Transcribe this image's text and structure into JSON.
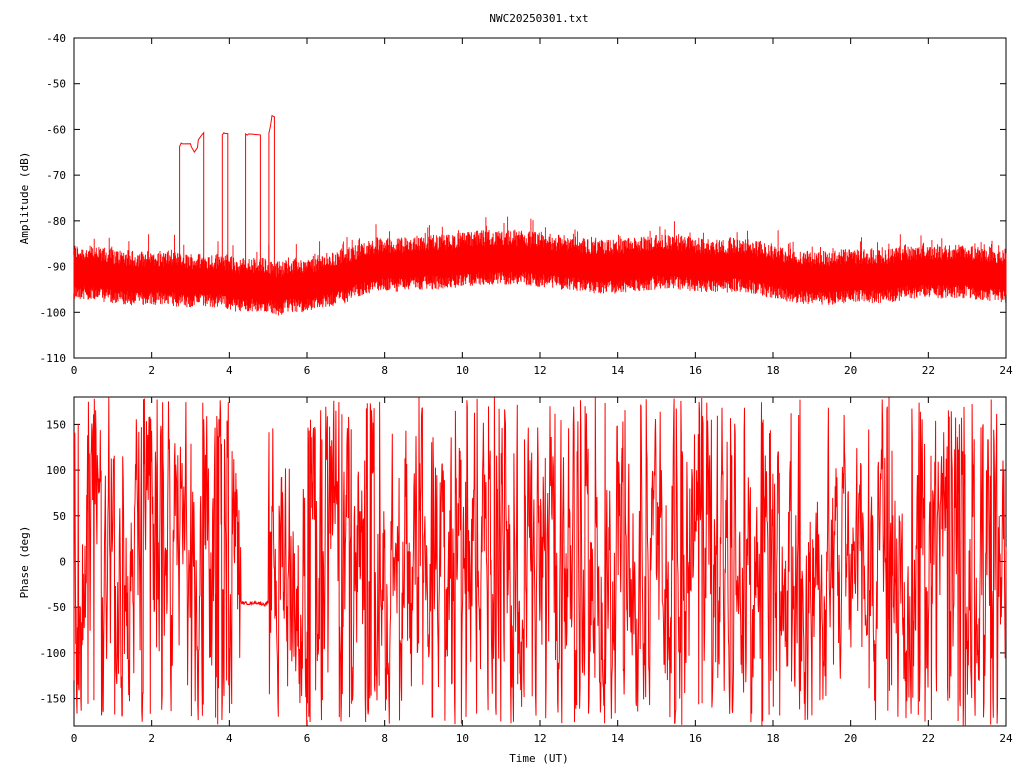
{
  "title": "NWC20250301.txt",
  "colors": {
    "trace": "#ff0000",
    "axis": "#000000",
    "background": "#ffffff"
  },
  "chart_data": [
    {
      "type": "line",
      "ylabel": "Amplitude (dB)",
      "xlabel": "",
      "xlim": [
        0,
        24
      ],
      "ylim": [
        -110,
        -40
      ],
      "xticks": [
        0,
        2,
        4,
        6,
        8,
        10,
        12,
        14,
        16,
        18,
        20,
        22,
        24
      ],
      "yticks": [
        -40,
        -50,
        -60,
        -70,
        -80,
        -90,
        -100,
        -110
      ],
      "grid": false,
      "legend": "none",
      "series": [
        {
          "baseline": {
            "x": [
              0,
              0.5,
              1,
              1.5,
              2,
              2.5,
              2.7,
              3.3,
              3.8,
              4.2,
              4.6,
              5.0,
              5.3,
              5.5,
              6,
              6.5,
              7,
              7.5,
              8,
              8.5,
              9,
              9.5,
              10,
              10.5,
              11,
              11.5,
              12,
              12.5,
              13,
              13.5,
              14,
              14.5,
              15,
              15.5,
              16,
              16.5,
              17,
              17.5,
              18,
              18.5,
              19,
              19.5,
              20,
              20.5,
              21,
              21.5,
              22,
              22.5,
              23,
              23.5,
              24
            ],
            "y": [
              -91,
              -91.5,
              -92,
              -92.5,
              -92.5,
              -92.5,
              -93,
              -93,
              -93,
              -94,
              -94,
              -94,
              -95,
              -94,
              -94,
              -93,
              -92,
              -90,
              -89.5,
              -89.5,
              -89,
              -89,
              -88.5,
              -88,
              -88,
              -88,
              -88.5,
              -89,
              -89.5,
              -90,
              -90,
              -89.5,
              -89,
              -89,
              -89.5,
              -90,
              -89.5,
              -90,
              -91,
              -92,
              -92.5,
              -92.5,
              -92,
              -92,
              -92,
              -91,
              -91,
              -91,
              -91,
              -91.5,
              -92
            ]
          },
          "noise_band_db": 12,
          "plateaus": [
            {
              "x": [
                2.72,
                2.76,
                2.8,
                3.0,
                3.02,
                3.1,
                3.18,
                3.2,
                3.3,
                3.34
              ],
              "y": [
                -64,
                -63,
                -63,
                -63,
                -63.5,
                -65,
                -64,
                -62,
                -61,
                -61
              ]
            },
            {
              "x": [
                3.82,
                3.86,
                3.88,
                3.96
              ],
              "y": [
                -61,
                -61,
                -61,
                -61
              ]
            },
            {
              "x": [
                4.42,
                4.46,
                4.5,
                4.8
              ],
              "y": [
                -61,
                -61,
                -61,
                -61
              ]
            },
            {
              "x": [
                5.02,
                5.06,
                5.1,
                5.16
              ],
              "y": [
                -61,
                -59,
                -57,
                -57
              ]
            }
          ]
        }
      ]
    },
    {
      "type": "line",
      "ylabel": "Phase (deg)",
      "xlabel": "Time (UT)",
      "xlim": [
        0,
        24
      ],
      "ylim": [
        -180,
        180
      ],
      "xticks": [
        0,
        2,
        4,
        6,
        8,
        10,
        12,
        14,
        16,
        18,
        20,
        22,
        24
      ],
      "yticks": [
        150,
        100,
        50,
        0,
        -50,
        -100,
        -150
      ],
      "grid": false,
      "legend": "none",
      "series": [
        {
          "wrap_range": [
            -180,
            180
          ],
          "quiet_segments": [
            {
              "x": [
                4.3,
                4.5,
                4.7,
                4.9,
                5.0
              ],
              "y": [
                -45,
                -46,
                -45,
                -47,
                -45
              ]
            }
          ],
          "sample_points": {
            "x": [
              0,
              1,
              2,
              2.6,
              3,
              3.4,
              3.8,
              4.2,
              4.4,
              5.0,
              5.3,
              6,
              7,
              8,
              9,
              10,
              11,
              12,
              13,
              14,
              15,
              16,
              17,
              18,
              19,
              20,
              21,
              22,
              23,
              24
            ],
            "y": [
              -60,
              100,
              -120,
              0,
              -80,
              -40,
              40,
              -50,
              -45,
              -45,
              60,
              -20,
              120,
              40,
              -60,
              80,
              -100,
              150,
              -30,
              90,
              -120,
              60,
              20,
              140,
              -80,
              30,
              -150,
              100,
              10,
              -40
            ]
          }
        }
      ]
    }
  ]
}
